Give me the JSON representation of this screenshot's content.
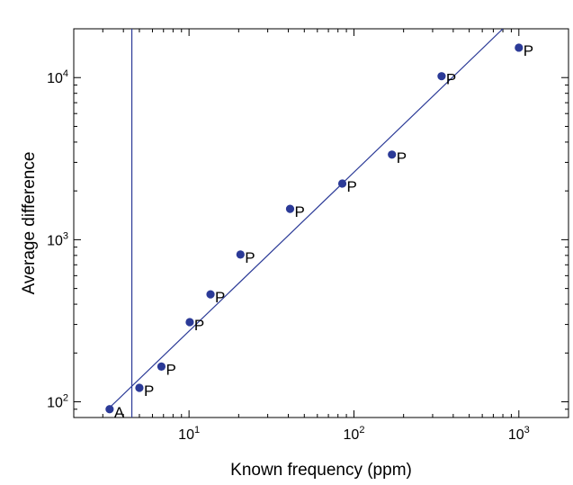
{
  "chart_data": {
    "type": "scatter",
    "title": "",
    "xlabel": "Known frequency (ppm)",
    "ylabel": "Average difference",
    "xscale": "log",
    "yscale": "log",
    "xlim": [
      2,
      2000
    ],
    "ylim": [
      80,
      20000
    ],
    "x_ticks": [
      {
        "base": "10",
        "exp": "1",
        "value": 10
      },
      {
        "base": "10",
        "exp": "2",
        "value": 100
      },
      {
        "base": "10",
        "exp": "3",
        "value": 1000
      }
    ],
    "y_ticks": [
      {
        "base": "10",
        "exp": "2",
        "value": 100
      },
      {
        "base": "10",
        "exp": "3",
        "value": 1000
      },
      {
        "base": "10",
        "exp": "4",
        "value": 10000
      }
    ],
    "points": [
      {
        "x": 3.3,
        "y": 90,
        "label": "A"
      },
      {
        "x": 5.0,
        "y": 122,
        "label": "P"
      },
      {
        "x": 6.8,
        "y": 165,
        "label": "P"
      },
      {
        "x": 10.1,
        "y": 310,
        "label": "P"
      },
      {
        "x": 13.5,
        "y": 460,
        "label": "P"
      },
      {
        "x": 20.5,
        "y": 810,
        "label": "P"
      },
      {
        "x": 41,
        "y": 1550,
        "label": "P"
      },
      {
        "x": 85,
        "y": 2220,
        "label": "P"
      },
      {
        "x": 170,
        "y": 3350,
        "label": "P"
      },
      {
        "x": 340,
        "y": 10200,
        "label": "P"
      },
      {
        "x": 1000,
        "y": 15300,
        "label": "P"
      }
    ],
    "fit_line": {
      "x1": 3.15,
      "y1": 88,
      "x2": 800,
      "y2": 20000
    },
    "vertical_line_x": 4.5,
    "grid": false,
    "colors": {
      "points": "#2b3a97",
      "lines": "#2b3a97",
      "axes": "#000000"
    }
  }
}
